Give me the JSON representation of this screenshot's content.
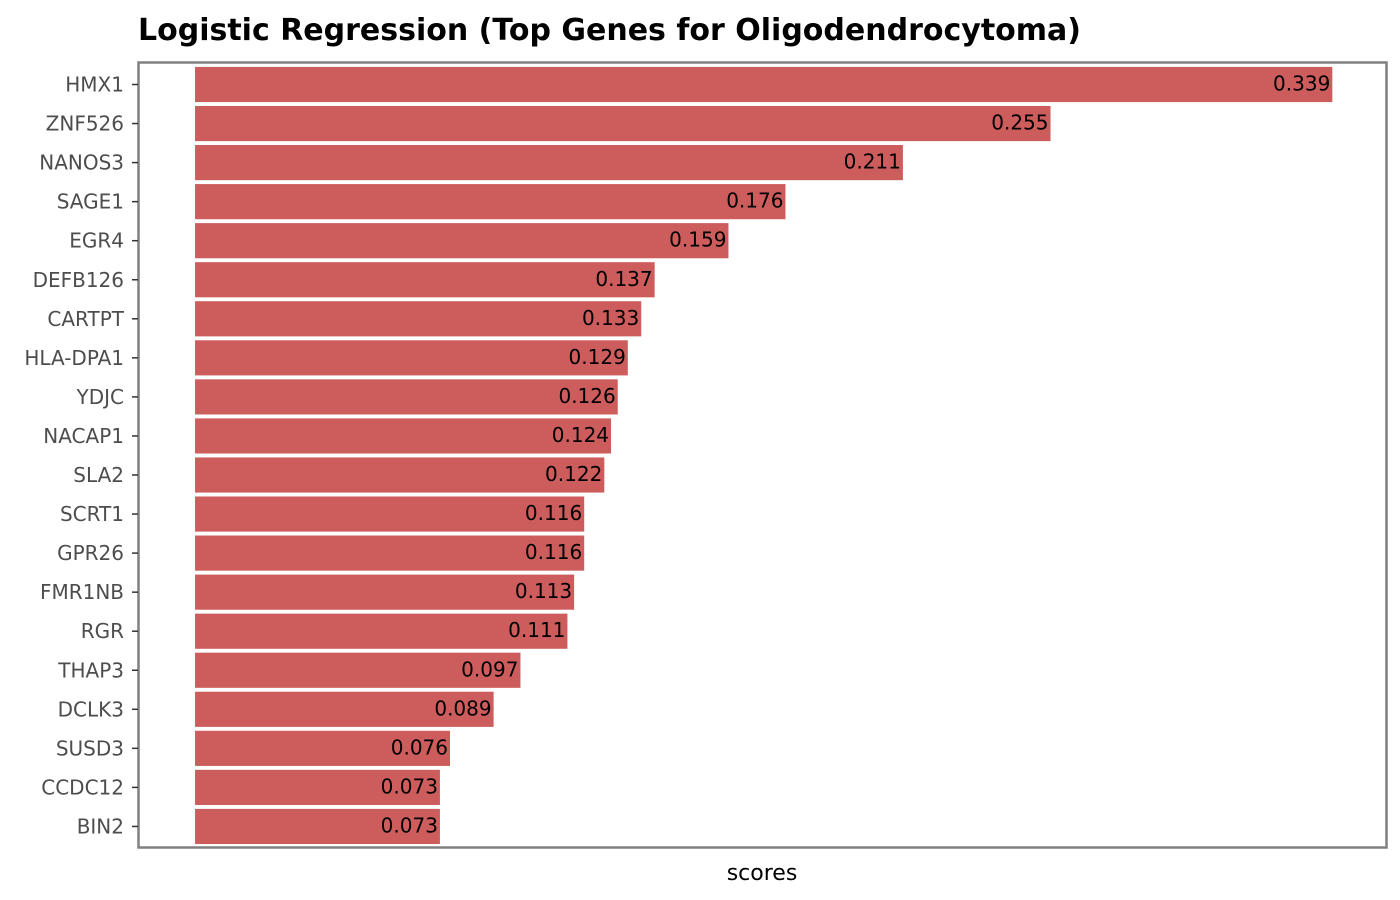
{
  "chart_data": {
    "type": "bar",
    "orientation": "horizontal",
    "title": "Logistic Regression (Top Genes for Oligodendrocytoma)",
    "xlabel": "scores",
    "ylabel": "",
    "categories": [
      "HMX1",
      "ZNF526",
      "NANOS3",
      "SAGE1",
      "EGR4",
      "DEFB126",
      "CARTPT",
      "HLA-DPA1",
      "YDJC",
      "NACAP1",
      "SLA2",
      "SCRT1",
      "GPR26",
      "FMR1NB",
      "RGR",
      "THAP3",
      "DCLK3",
      "SUSD3",
      "CCDC12",
      "BIN2"
    ],
    "values": [
      0.339,
      0.255,
      0.211,
      0.176,
      0.159,
      0.137,
      0.133,
      0.129,
      0.126,
      0.124,
      0.122,
      0.116,
      0.116,
      0.113,
      0.111,
      0.097,
      0.089,
      0.076,
      0.073,
      0.073
    ],
    "value_labels": [
      "0.339",
      "0.255",
      "0.211",
      "0.176",
      "0.159",
      "0.137",
      "0.133",
      "0.129",
      "0.126",
      "0.124",
      "0.122",
      "0.116",
      "0.116",
      "0.113",
      "0.111",
      "0.097",
      "0.089",
      "0.076",
      "0.073",
      "0.073"
    ],
    "xlim": [
      -0.017,
      0.355
    ],
    "grid": false,
    "legend": "none",
    "colors": {
      "bar": "#cd5c5c",
      "frame": "#808080",
      "tick_label": "#4d4d4d"
    }
  }
}
